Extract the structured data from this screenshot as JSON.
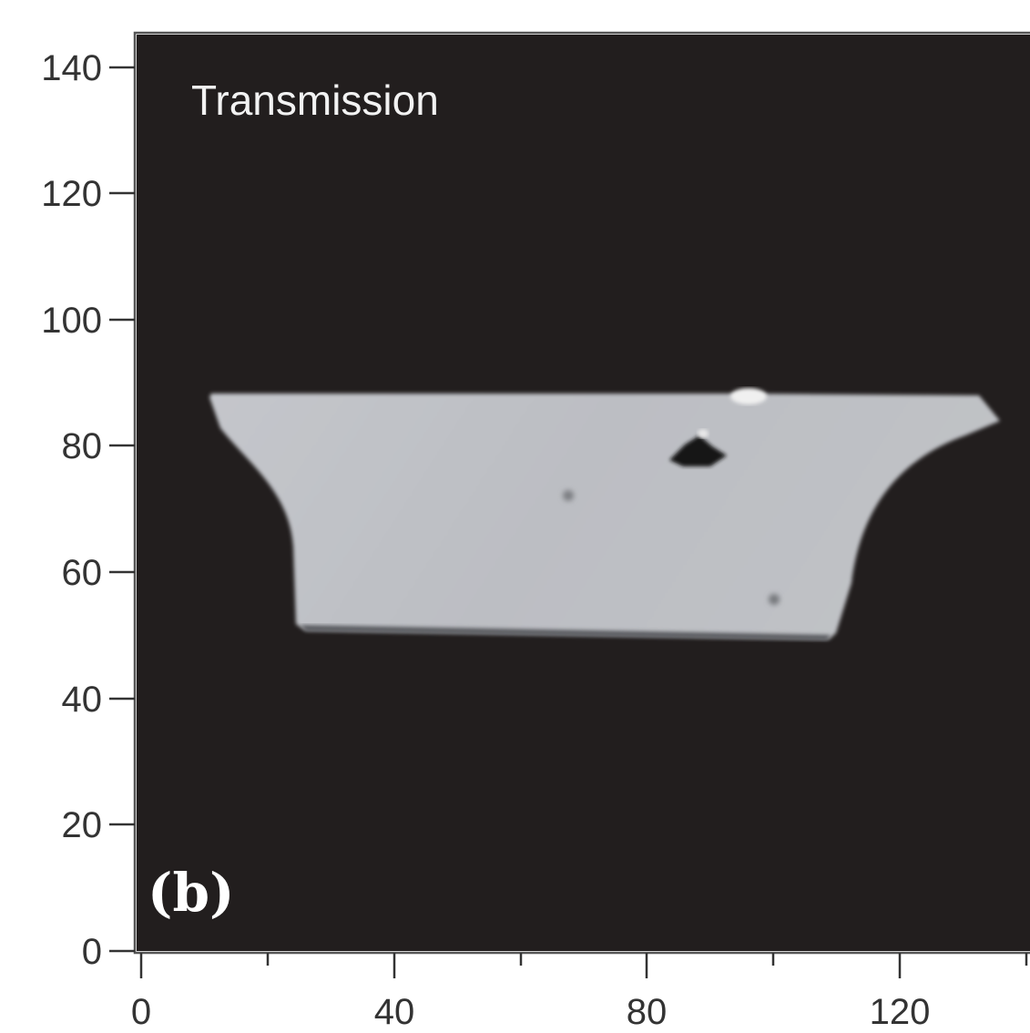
{
  "figure": {
    "overlay_title": "Transmission",
    "panel_label": "(b)"
  },
  "axes": {
    "x": {
      "min": 0,
      "max": 140,
      "major_ticks": [
        0,
        40,
        80,
        120
      ],
      "labels": [
        "0",
        "40",
        "80",
        "120"
      ]
    },
    "y": {
      "min": 0,
      "max": 140,
      "major_ticks": [
        0,
        20,
        40,
        60,
        80,
        100,
        120,
        140
      ],
      "labels": [
        "0",
        "20",
        "40",
        "60",
        "80",
        "100",
        "120",
        "140"
      ]
    }
  },
  "colors": {
    "background": "#221e1e",
    "sample": "#bdbfc4",
    "axis": "#333333",
    "defect": "#151515",
    "highlight": "#f0f0f0"
  }
}
